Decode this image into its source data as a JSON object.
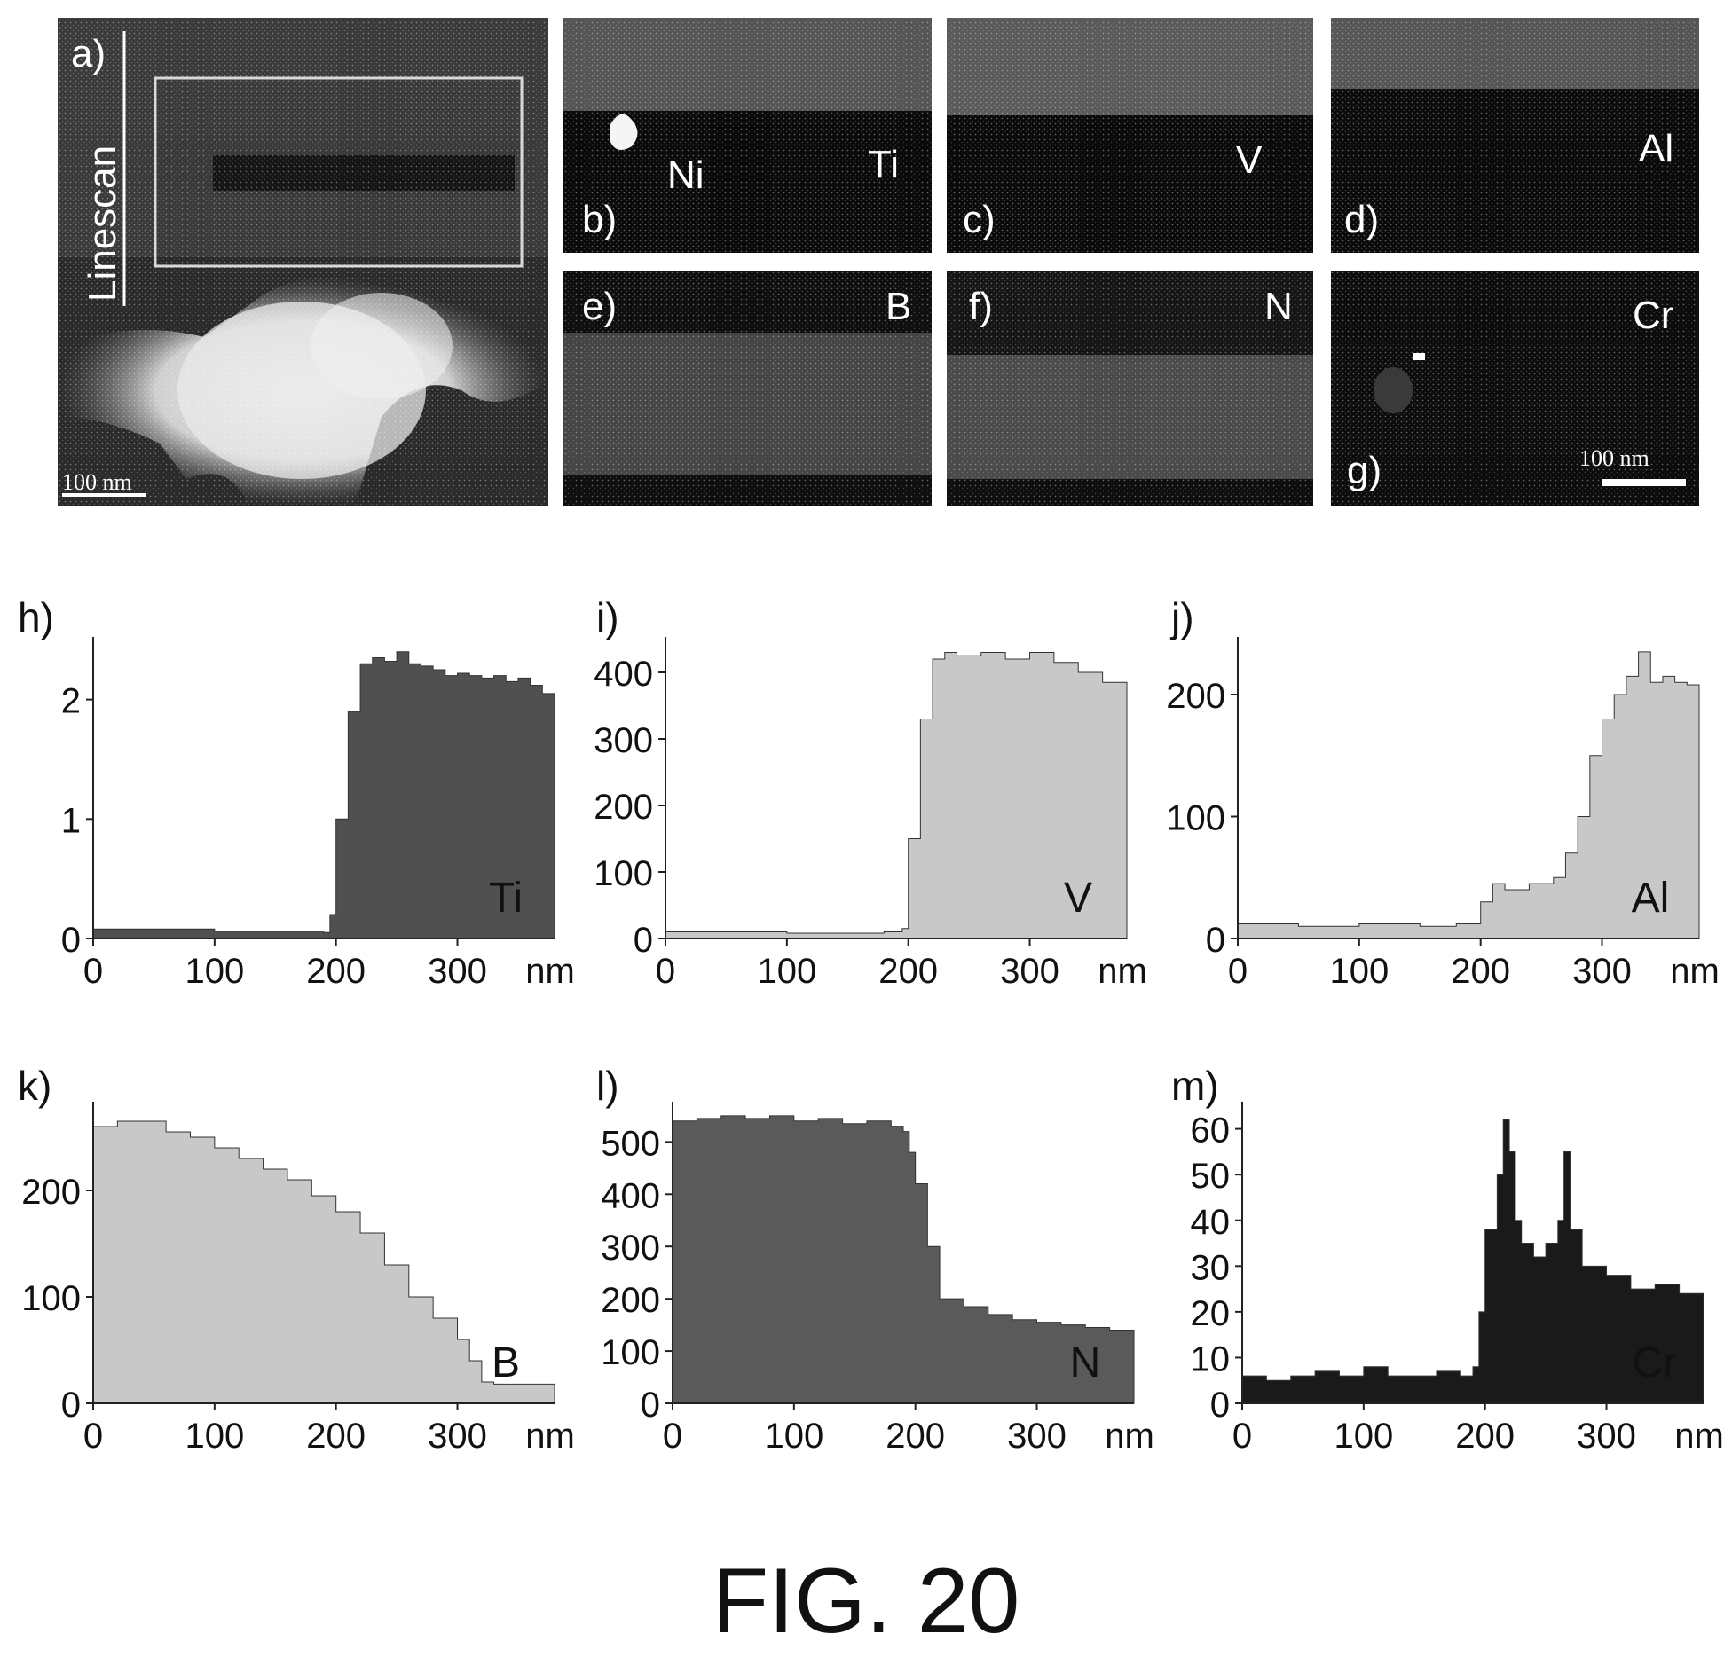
{
  "figure_label": "FIG. 20",
  "maps": [
    {
      "id": "a",
      "label": "a)",
      "side_label": "Linescan",
      "scale_bar": "100 nm"
    },
    {
      "id": "b",
      "label": "b)",
      "elements": [
        "Ni",
        "Ti"
      ]
    },
    {
      "id": "c",
      "label": "c)",
      "elements": [
        "V"
      ]
    },
    {
      "id": "d",
      "label": "d)",
      "elements": [
        "Al"
      ]
    },
    {
      "id": "e",
      "label": "e)",
      "elements": [
        "B"
      ]
    },
    {
      "id": "f",
      "label": "f)",
      "elements": [
        "N"
      ]
    },
    {
      "id": "g",
      "label": "g)",
      "elements": [
        "Cr"
      ],
      "scale_bar": "100 nm"
    }
  ],
  "chart_data": [
    {
      "panel": "h)",
      "type": "area",
      "series_label": "Ti",
      "fill": "#505050",
      "xticks": [
        0,
        100,
        200,
        300
      ],
      "xunit": "nm",
      "xlim": [
        0,
        380
      ],
      "yticks": [
        0,
        1,
        2
      ],
      "ylim": [
        0,
        2.45
      ],
      "x": [
        0,
        100,
        190,
        195,
        200,
        210,
        220,
        230,
        240,
        250,
        260,
        270,
        280,
        290,
        300,
        310,
        320,
        330,
        340,
        350,
        360,
        370,
        380
      ],
      "y": [
        0.08,
        0.06,
        0.05,
        0.2,
        1.0,
        1.9,
        2.3,
        2.35,
        2.32,
        2.4,
        2.3,
        2.28,
        2.25,
        2.2,
        2.22,
        2.2,
        2.18,
        2.2,
        2.15,
        2.18,
        2.12,
        2.05,
        2.0
      ]
    },
    {
      "panel": "i)",
      "type": "area",
      "series_label": "V",
      "fill": "#c8c8c8",
      "xticks": [
        0,
        100,
        200,
        300
      ],
      "xunit": "nm",
      "xlim": [
        0,
        380
      ],
      "yticks": [
        0,
        100,
        200,
        300,
        400
      ],
      "ylim": [
        0,
        440
      ],
      "x": [
        0,
        100,
        180,
        195,
        200,
        210,
        220,
        230,
        240,
        260,
        280,
        300,
        320,
        340,
        360,
        380
      ],
      "y": [
        10,
        8,
        10,
        15,
        150,
        330,
        420,
        430,
        425,
        430,
        420,
        430,
        415,
        400,
        385,
        370
      ]
    },
    {
      "panel": "j)",
      "type": "area",
      "series_label": "Al",
      "fill": "#c8c8c8",
      "xticks": [
        0,
        100,
        200,
        300
      ],
      "xunit": "nm",
      "xlim": [
        0,
        380
      ],
      "yticks": [
        0,
        100,
        200
      ],
      "ylim": [
        0,
        240
      ],
      "x": [
        0,
        50,
        100,
        150,
        180,
        200,
        210,
        220,
        240,
        260,
        270,
        280,
        290,
        300,
        310,
        320,
        330,
        340,
        350,
        360,
        370,
        380
      ],
      "y": [
        12,
        10,
        12,
        10,
        12,
        30,
        45,
        40,
        45,
        50,
        70,
        100,
        150,
        180,
        200,
        215,
        235,
        210,
        215,
        210,
        208,
        205
      ]
    },
    {
      "panel": "k)",
      "type": "area",
      "series_label": "B",
      "fill": "#c8c8c8",
      "xticks": [
        0,
        100,
        200,
        300
      ],
      "xunit": "nm",
      "xlim": [
        0,
        380
      ],
      "yticks": [
        0,
        100,
        200
      ],
      "ylim": [
        0,
        275
      ],
      "x": [
        0,
        20,
        40,
        60,
        80,
        100,
        120,
        140,
        160,
        180,
        200,
        220,
        240,
        260,
        280,
        300,
        310,
        320,
        330,
        340,
        360,
        380
      ],
      "y": [
        260,
        265,
        265,
        255,
        250,
        240,
        230,
        220,
        210,
        195,
        180,
        160,
        130,
        100,
        80,
        60,
        40,
        20,
        18,
        18,
        18,
        18
      ]
    },
    {
      "panel": "l)",
      "type": "area",
      "series_label": "N",
      "fill": "#5a5a5a",
      "xticks": [
        0,
        100,
        200,
        300
      ],
      "xunit": "nm",
      "xlim": [
        0,
        380
      ],
      "yticks": [
        0,
        100,
        200,
        300,
        400,
        500
      ],
      "ylim": [
        0,
        560
      ],
      "x": [
        0,
        20,
        40,
        60,
        80,
        100,
        120,
        140,
        160,
        180,
        190,
        195,
        200,
        210,
        220,
        240,
        260,
        280,
        300,
        320,
        340,
        360,
        380
      ],
      "y": [
        540,
        545,
        550,
        545,
        550,
        540,
        545,
        535,
        540,
        530,
        520,
        480,
        420,
        300,
        200,
        185,
        170,
        160,
        155,
        150,
        145,
        140,
        135
      ]
    },
    {
      "panel": "m)",
      "type": "area",
      "series_label": "Cr",
      "fill": "#1a1a1a",
      "xticks": [
        0,
        100,
        200,
        300
      ],
      "xunit": "nm",
      "xlim": [
        0,
        380
      ],
      "yticks": [
        0,
        10,
        20,
        30,
        40,
        50,
        60
      ],
      "ylim": [
        0,
        64
      ],
      "x": [
        0,
        20,
        40,
        60,
        80,
        100,
        120,
        140,
        160,
        180,
        190,
        195,
        200,
        210,
        215,
        220,
        225,
        230,
        240,
        250,
        260,
        265,
        270,
        280,
        300,
        320,
        340,
        360,
        380
      ],
      "y": [
        6,
        5,
        6,
        7,
        6,
        8,
        6,
        6,
        7,
        6,
        8,
        20,
        38,
        50,
        62,
        55,
        40,
        35,
        32,
        35,
        40,
        55,
        38,
        30,
        28,
        25,
        26,
        24,
        22
      ]
    }
  ]
}
